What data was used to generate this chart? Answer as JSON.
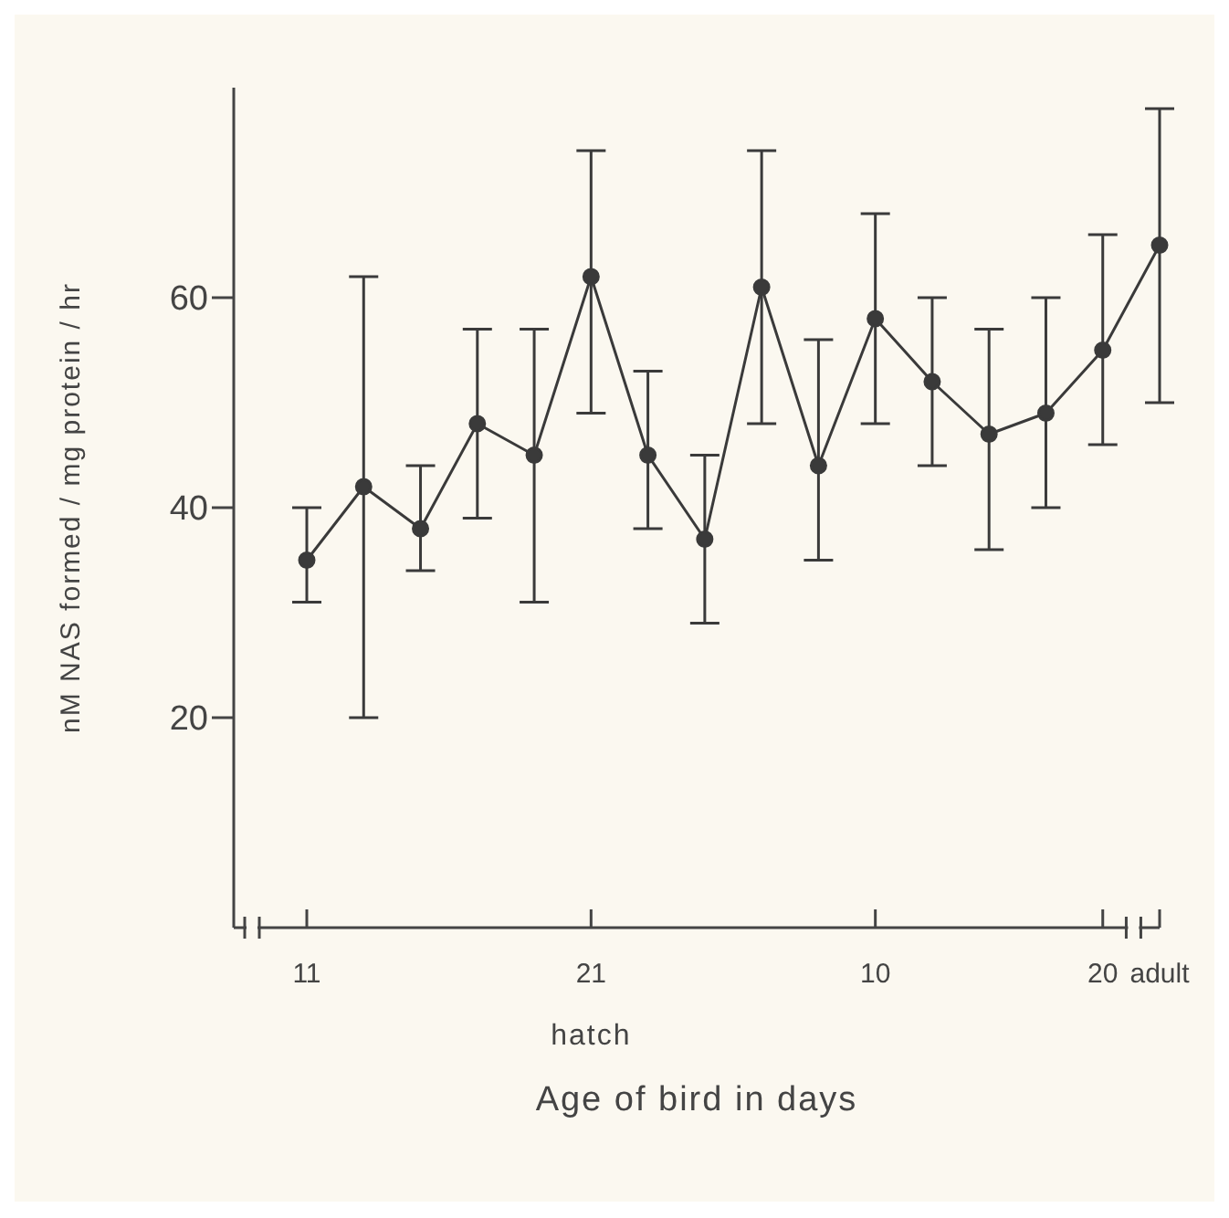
{
  "chart_data": {
    "type": "line",
    "xlabel": "Age of bird in days",
    "ylabel": "nM NAS formed / mg protein / hr",
    "annotations": [
      "hatch"
    ],
    "categories": [
      "11",
      null,
      null,
      null,
      null,
      "21",
      null,
      null,
      null,
      null,
      "10",
      null,
      null,
      null,
      "20",
      "adult"
    ],
    "series": [
      {
        "color": "#3a3a3a",
        "values": [
          35,
          42,
          38,
          48,
          45,
          62,
          45,
          37,
          61,
          44,
          58,
          52,
          47,
          49,
          55,
          65
        ],
        "errors": [
          [
            31,
            40
          ],
          [
            20,
            62
          ],
          [
            34,
            44
          ],
          [
            39,
            57
          ],
          [
            31,
            57
          ],
          [
            49,
            74
          ],
          [
            38,
            53
          ],
          [
            29,
            45
          ],
          [
            48,
            74
          ],
          [
            35,
            56
          ],
          [
            48,
            68
          ],
          [
            44,
            60
          ],
          [
            36,
            57
          ],
          [
            40,
            60
          ],
          [
            46,
            66
          ],
          [
            50,
            78
          ]
        ]
      }
    ],
    "ylim": [
      0,
      80
    ],
    "yticks": [
      20,
      40,
      60
    ],
    "marker": "circle",
    "line_style": "solid"
  }
}
